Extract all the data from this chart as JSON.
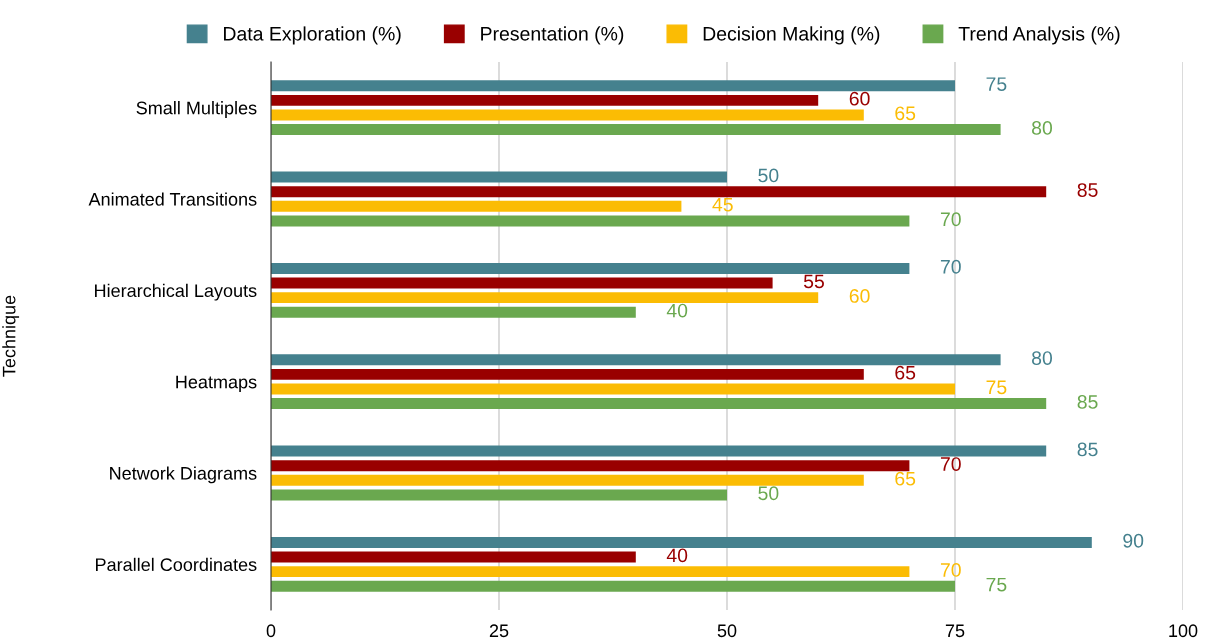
{
  "chart_data": {
    "type": "bar",
    "orientation": "horizontal",
    "ylabel": "Technique",
    "categories": [
      "Small Multiples",
      "Animated Transitions",
      "Hierarchical Layouts",
      "Heatmaps",
      "Network Diagrams",
      "Parallel Coordinates"
    ],
    "series": [
      {
        "name": "Data Exploration (%)",
        "color": "#45818e",
        "values": [
          75,
          50,
          70,
          80,
          85,
          90
        ]
      },
      {
        "name": "Presentation (%)",
        "color": "#990000",
        "values": [
          60,
          85,
          55,
          65,
          70,
          40
        ]
      },
      {
        "name": "Decision Making (%)",
        "color": "#fbbc04",
        "values": [
          65,
          45,
          60,
          75,
          65,
          70
        ]
      },
      {
        "name": "Trend Analysis (%)",
        "color": "#6aa84f",
        "values": [
          80,
          70,
          40,
          85,
          50,
          75
        ]
      }
    ],
    "xlim": [
      0,
      100
    ],
    "xticks": [
      0,
      25,
      50,
      75,
      100
    ],
    "grid": "x",
    "legend": "top",
    "data_labels": true
  }
}
